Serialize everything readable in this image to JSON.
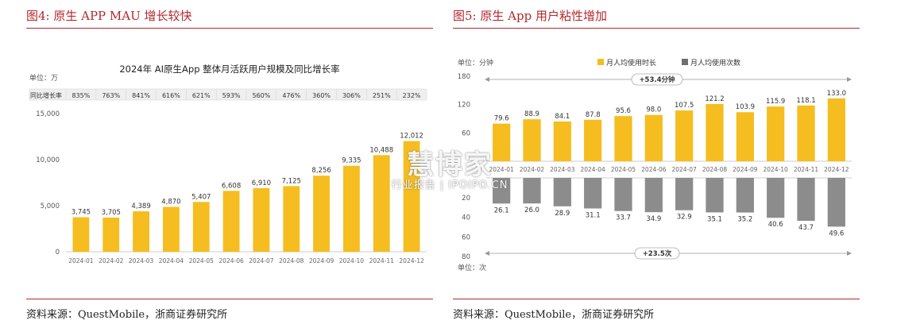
{
  "left_panel": {
    "figure_title": "图4: 原生 APP MAU 增长较快",
    "source": "资料来源：QuestMobile，浙商证券研究所"
  },
  "right_panel": {
    "figure_title": "图5: 原生 App 用户粘性增加",
    "source": "资料来源：QuestMobile，浙商证券研究所"
  },
  "watermark": {
    "main": "慧博家",
    "sub": "行业报告 | IPOIPO.CN"
  },
  "colors": {
    "accent_red": "#b5282d",
    "bar_gold": "#f5bd1f",
    "bar_gray": "#8c8c8c"
  },
  "chart_data": [
    {
      "type": "bar",
      "title": "2024年 AI原生App 整体月活跃用户规模及同比增长率",
      "unit_label": "单位：万",
      "yoy_label": "同比增长率",
      "categories": [
        "2024-01",
        "2024-02",
        "2024-03",
        "2024-04",
        "2024-05",
        "2024-06",
        "2024-07",
        "2024-08",
        "2024-09",
        "2024-10",
        "2024-11",
        "2024-12"
      ],
      "values": [
        3745,
        3705,
        4389,
        4870,
        5407,
        6608,
        6910,
        7125,
        8256,
        9335,
        10488,
        12012
      ],
      "value_labels": [
        "3,745",
        "3,705",
        "4,389",
        "4,870",
        "5,407",
        "6,608",
        "6,910",
        "7,125",
        "8,256",
        "9,335",
        "10,488",
        "12,012"
      ],
      "yoy": [
        "835%",
        "763%",
        "841%",
        "616%",
        "621%",
        "593%",
        "560%",
        "476%",
        "360%",
        "306%",
        "251%",
        "232%"
      ],
      "yticks": [
        "0",
        "5,000",
        "10,000",
        "15,000"
      ],
      "ylim": [
        0,
        15000
      ]
    },
    {
      "type": "bar",
      "unit_top": "单位：分钟",
      "unit_bottom": "单位：次",
      "categories": [
        "2024-01",
        "2024-02",
        "2024-03",
        "2024-04",
        "2024-05",
        "2024-06",
        "2024-07",
        "2024-08",
        "2024-09",
        "2024-10",
        "2024-11",
        "2024-12"
      ],
      "series": [
        {
          "name": "月人均使用时长",
          "values": [
            79.6,
            88.9,
            84.1,
            87.8,
            95.6,
            98.0,
            107.5,
            121.2,
            103.9,
            115.9,
            118.1,
            133.0
          ],
          "labels": [
            "79.6",
            "88.9",
            "84.1",
            "87.8",
            "95.6",
            "98.0",
            "107.5",
            "121.2",
            "103.9",
            "115.9",
            "118.1",
            "133.0"
          ]
        },
        {
          "name": "月人均使用次数",
          "values": [
            26.1,
            26.0,
            28.9,
            31.1,
            33.7,
            34.9,
            32.9,
            35.1,
            35.2,
            40.6,
            43.7,
            49.6
          ],
          "labels": [
            "26.1",
            "26.0",
            "28.9",
            "31.1",
            "33.7",
            "34.9",
            "32.9",
            "35.1",
            "35.2",
            "40.6",
            "43.7",
            "49.6"
          ]
        }
      ],
      "ylim_top": [
        0,
        180
      ],
      "ylim_bottom": [
        0,
        80
      ],
      "yticks_top": [
        "180",
        "120",
        "60"
      ],
      "yticks_bottom": [
        "20",
        "40",
        "60",
        "80"
      ],
      "annotation_top": "+53.4分钟",
      "annotation_bottom": "+23.5次"
    }
  ]
}
